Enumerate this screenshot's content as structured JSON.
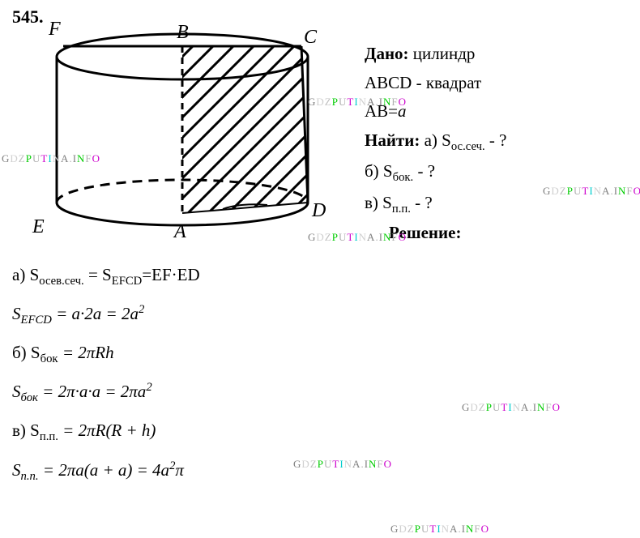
{
  "problem_number": "545.",
  "diagram": {
    "labels": {
      "F": "F",
      "B": "B",
      "C": "C",
      "E": "E",
      "A": "A",
      "D": "D"
    },
    "watermark_colors": {
      "g": "#808080",
      "d": "#d0d0d0",
      "z": "#c0c0c0",
      "p": "#00cc00",
      "u": "#b0b0b0",
      "t": "#cc00cc",
      "i": "#00cccc",
      "n": "#d0d0d0",
      "a": "#808080",
      "dot": "#b0b0b0",
      "info_i": "#808080",
      "info_n": "#00cc00",
      "info_f": "#b0b0b0",
      "info_o": "#cc00cc"
    }
  },
  "given": {
    "title": "Дано:",
    "line1_b": "цилиндр",
    "line2_a": "ABCD",
    "line2_b": " - квадрат",
    "line3_a": "AB=",
    "line3_b": "a",
    "find_title": "Найти:",
    "find_a": " а) S",
    "find_a_sub": "ос.сеч.",
    "find_a_end": " - ?",
    "find_b": "б) S",
    "find_b_sub": "бок.",
    "find_b_end": " - ?",
    "find_c": "в) S",
    "find_c_sub": "п.п.",
    "find_c_end": " - ?"
  },
  "solution_header": "Решение:",
  "solution": {
    "a_line1_a": "а) S",
    "a_line1_sub1": "осев.сеч.",
    "a_line1_b": " = S",
    "a_line1_sub2": "EFCD",
    "a_line1_c": "=EF·ED",
    "a_line2_a": "S",
    "a_line2_sub": "EFCD",
    "a_line2_b": " = a·2a = 2a",
    "a_line2_sup": "2",
    "b_line1_a": "б) S",
    "b_line1_sub": "бок",
    "b_line1_b": " = 2πRh",
    "b_line2_a": "S",
    "b_line2_sub": "бок",
    "b_line2_b": " = 2π·a·a = 2πa",
    "b_line2_sup": "2",
    "c_line1_a": "в) S",
    "c_line1_sub": "п.п.",
    "c_line1_b": " = 2πR(R + h)",
    "c_line2_a": "S",
    "c_line2_sub": "п.п.",
    "c_line2_b": " = 2πa(a + a) = 4a",
    "c_line2_sup": "2",
    "c_line2_c": "π"
  },
  "watermark_text": "GDZPUTINA.INFO"
}
